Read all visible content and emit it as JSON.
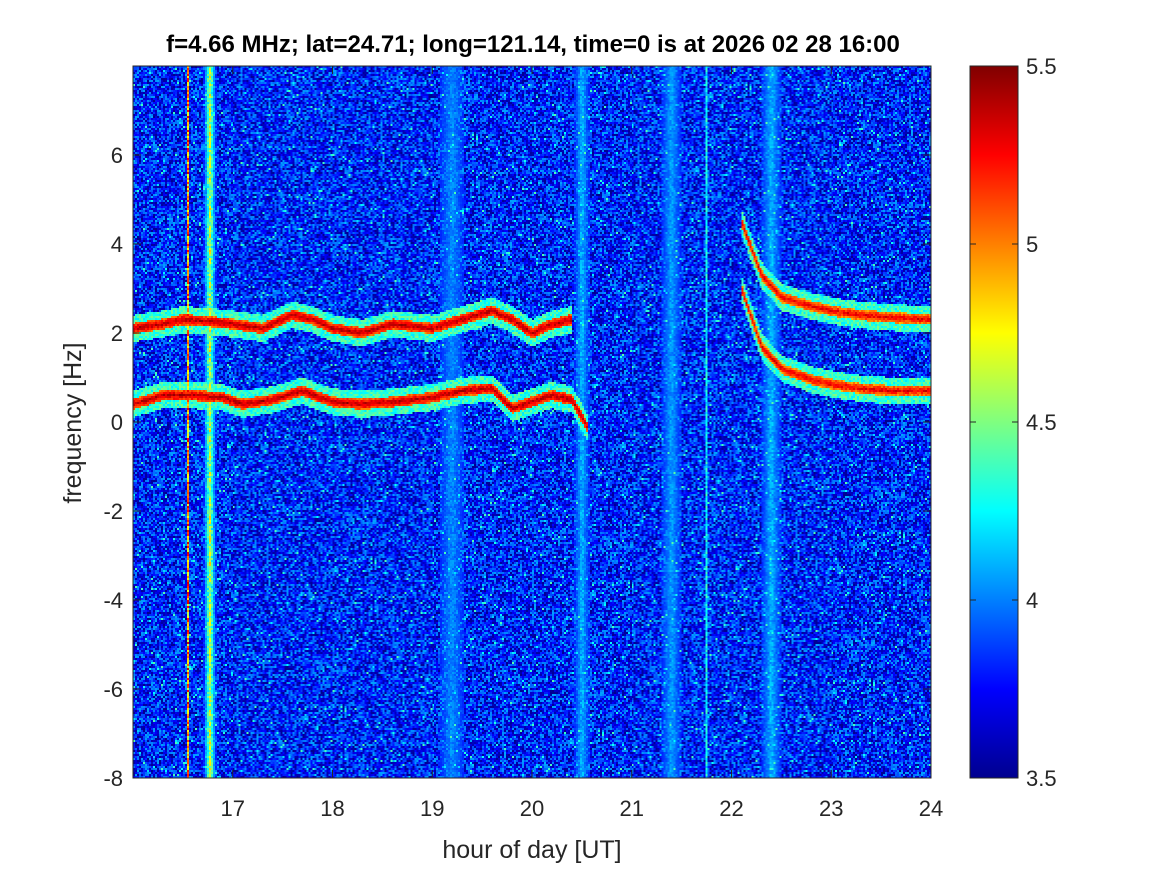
{
  "chart_data": {
    "type": "heatmap",
    "title": "f=4.66 MHz;  lat=24.71; long=121.14, time=0 is at 2026 02 28 16:00",
    "xlabel": "hour of day [UT]",
    "ylabel": "frequency [Hz]",
    "xlim": [
      16,
      24
    ],
    "ylim": [
      -8,
      8
    ],
    "xticks": [
      17,
      18,
      19,
      20,
      21,
      22,
      23,
      24
    ],
    "yticks": [
      -8,
      -6,
      -4,
      -2,
      0,
      2,
      4,
      6
    ],
    "colorbar": {
      "colormap": "jet",
      "clim": [
        3.5,
        5.5
      ],
      "ticks": [
        "3.5",
        "4",
        "4.5",
        "5",
        "5.5"
      ]
    },
    "background_level": 3.8,
    "vertical_bands": [
      {
        "x": 16.55,
        "width": 0.02,
        "level": 5.1
      },
      {
        "x": 16.77,
        "width": 0.12,
        "level": 4.7
      },
      {
        "x": 19.2,
        "width": 0.25,
        "level": 4.05
      },
      {
        "x": 20.5,
        "width": 0.15,
        "level": 4.15
      },
      {
        "x": 21.4,
        "width": 0.2,
        "level": 4.1
      },
      {
        "x": 21.75,
        "width": 0.03,
        "level": 4.3
      },
      {
        "x": 22.4,
        "width": 0.2,
        "level": 4.15
      }
    ],
    "traces": [
      {
        "x": [
          16.0,
          16.3,
          16.5,
          16.8,
          17.0,
          17.3,
          17.6,
          17.8,
          18.0,
          18.3,
          18.6,
          19.0,
          19.3,
          19.6,
          19.8,
          20.0,
          20.2,
          20.4
        ],
        "y": [
          2.1,
          2.2,
          2.3,
          2.25,
          2.2,
          2.1,
          2.4,
          2.3,
          2.1,
          2.0,
          2.2,
          2.1,
          2.3,
          2.5,
          2.3,
          2.0,
          2.2,
          2.3
        ],
        "level": 5.4
      },
      {
        "x": [
          16.0,
          16.3,
          16.6,
          16.9,
          17.1,
          17.4,
          17.7,
          18.0,
          18.3,
          18.6,
          19.0,
          19.3,
          19.6,
          19.8,
          20.0,
          20.2,
          20.4,
          20.55
        ],
        "y": [
          0.4,
          0.6,
          0.6,
          0.55,
          0.4,
          0.5,
          0.7,
          0.45,
          0.4,
          0.45,
          0.55,
          0.7,
          0.75,
          0.3,
          0.45,
          0.6,
          0.5,
          -0.1
        ],
        "level": 5.4
      },
      {
        "x": [
          22.1,
          22.3,
          22.5,
          22.8,
          23.0,
          23.3,
          23.6,
          24.0
        ],
        "y": [
          4.5,
          3.3,
          2.8,
          2.6,
          2.5,
          2.4,
          2.35,
          2.3
        ],
        "level": 5.3
      },
      {
        "x": [
          22.1,
          22.3,
          22.5,
          22.8,
          23.0,
          23.3,
          23.6,
          24.0
        ],
        "y": [
          3.0,
          1.7,
          1.2,
          0.95,
          0.85,
          0.75,
          0.7,
          0.7
        ],
        "level": 5.3
      }
    ]
  }
}
